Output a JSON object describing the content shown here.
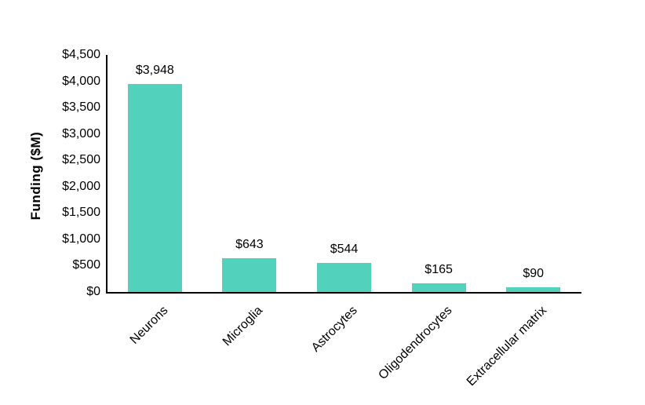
{
  "chart_data": {
    "type": "bar",
    "categories": [
      "Neurons",
      "Microglia",
      "Astrocytes",
      "Oligodendrocytes",
      "Extracellular matrix"
    ],
    "values": [
      3948,
      643,
      544,
      165,
      90
    ],
    "value_labels": [
      "$3,948",
      "$643",
      "$544",
      "$165",
      "$90"
    ],
    "title": "",
    "xlabel": "",
    "ylabel": "Funding ($M)",
    "ylim": [
      0,
      4500
    ],
    "ytick_step": 500,
    "ytick_labels": [
      "$0",
      "$500",
      "$1,000",
      "$1,500",
      "$2,000",
      "$2,500",
      "$3,000",
      "$3,500",
      "$4,000",
      "$4,500"
    ],
    "grid": "off",
    "legend": "none",
    "bar_color": "#52D1BC",
    "axis_color": "#000000",
    "text_color": "#000000",
    "background_color": "#FFFFFF"
  }
}
